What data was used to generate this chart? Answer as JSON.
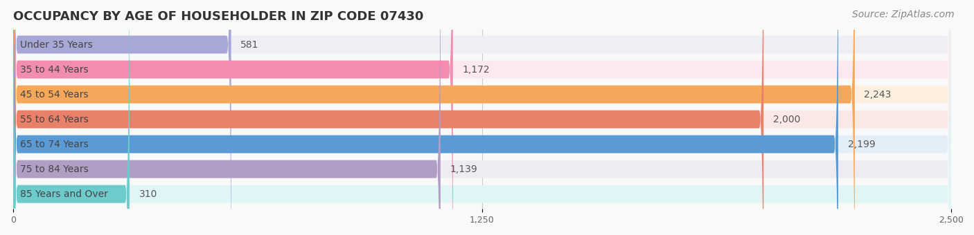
{
  "title": "OCCUPANCY BY AGE OF HOUSEHOLDER IN ZIP CODE 07430",
  "source": "Source: ZipAtlas.com",
  "categories": [
    "Under 35 Years",
    "35 to 44 Years",
    "45 to 54 Years",
    "55 to 64 Years",
    "65 to 74 Years",
    "75 to 84 Years",
    "85 Years and Over"
  ],
  "values": [
    581,
    1172,
    2243,
    2000,
    2199,
    1139,
    310
  ],
  "bar_colors": [
    "#a8a8d8",
    "#f28cb1",
    "#f5a85a",
    "#e8806a",
    "#5b9bd5",
    "#b09ec4",
    "#6ecbcc"
  ],
  "bar_bg_colors": [
    "#eeeef5",
    "#fce8ef",
    "#fdf0e0",
    "#fae8e4",
    "#e4eef8",
    "#eeebf3",
    "#e0f5f5"
  ],
  "xlim": [
    0,
    2500
  ],
  "xticks": [
    0,
    1250,
    2500
  ],
  "background_color": "#f9f9f9",
  "title_fontsize": 13,
  "label_fontsize": 10,
  "value_fontsize": 10,
  "source_fontsize": 10
}
